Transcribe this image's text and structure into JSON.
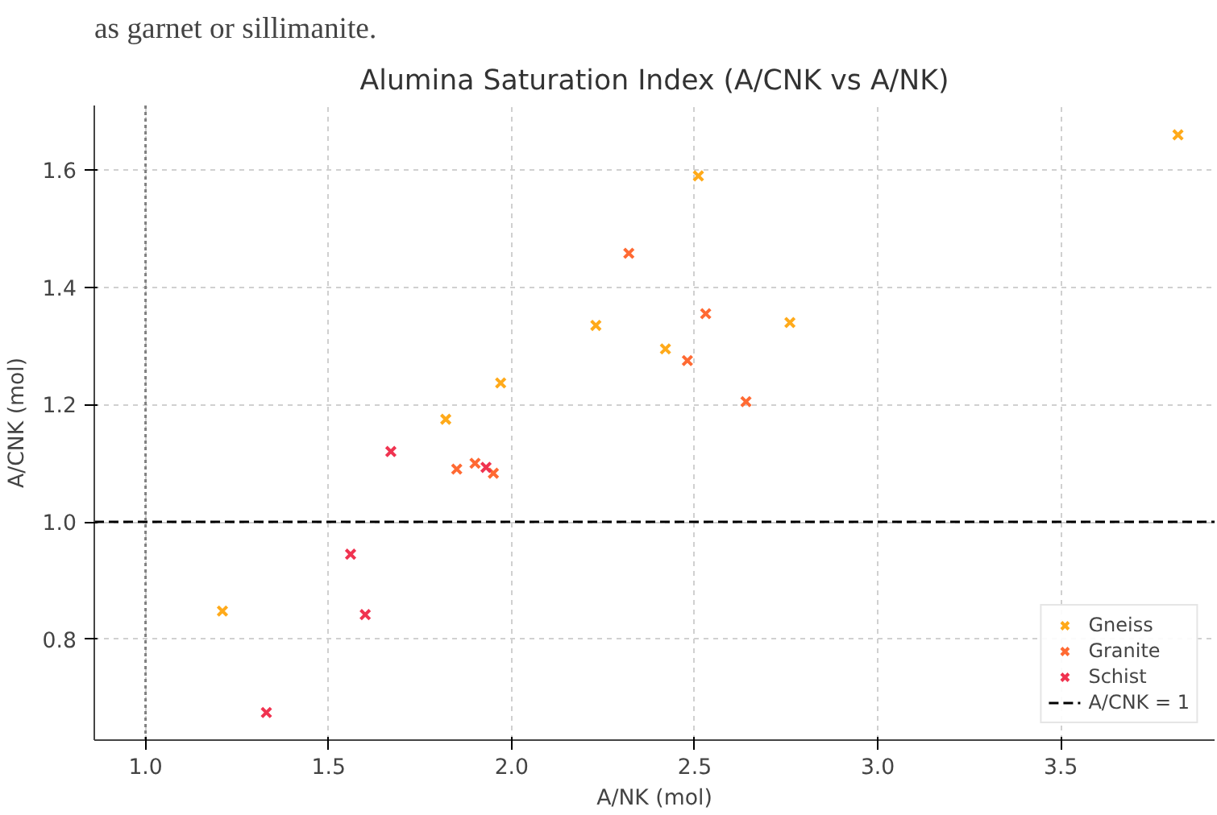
{
  "chart_data": {
    "type": "scatter",
    "title": "Alumina Saturation Index (A/CNK vs A/NK)",
    "annotations": [
      "as garnet or sillimanite."
    ],
    "xlabel": "A/NK (mol)",
    "ylabel": "A/CNK (mol)",
    "xlim": [
      0.86,
      3.92
    ],
    "ylim": [
      0.628,
      1.71
    ],
    "xticks": [
      {
        "value": 1,
        "label": "1.0"
      },
      1.5,
      {
        "value": 2,
        "label": "2.0"
      },
      2.5,
      {
        "value": 3,
        "label": "3.0"
      },
      3.5
    ],
    "yticks": [
      0.8,
      {
        "value": 1,
        "label": "1.0"
      },
      1.2,
      1.4,
      1.6
    ],
    "grid": true,
    "legend": "bottom right",
    "marker": "cross",
    "series": [
      {
        "name": "Gneiss",
        "color": "#ffaa1a",
        "x": [
          3.82,
          2.51,
          2.76,
          2.23,
          2.42,
          1.97,
          1.82,
          1.21
        ],
        "values": [
          1.66,
          1.59,
          1.34,
          1.335,
          1.295,
          1.237,
          1.175,
          0.848
        ]
      },
      {
        "name": "Granite",
        "color": "#ff6a33",
        "x": [
          2.32,
          2.53,
          2.48,
          2.64,
          1.85,
          1.9,
          1.95
        ],
        "values": [
          1.458,
          1.355,
          1.275,
          1.205,
          1.09,
          1.1,
          1.083
        ]
      },
      {
        "name": "Schist",
        "color": "#f03350",
        "x": [
          1.67,
          1.93,
          1.56,
          1.6,
          1.33
        ],
        "values": [
          1.12,
          1.093,
          0.945,
          0.842,
          0.675
        ]
      }
    ],
    "ref_lines": [
      {
        "axis": "y",
        "value": 1.0,
        "label": "A/CNK = 1",
        "color": "#000000",
        "line_style": "dashed"
      },
      {
        "axis": "x",
        "value": 1.0,
        "color": "#808080",
        "line_style": "dotted"
      }
    ]
  }
}
